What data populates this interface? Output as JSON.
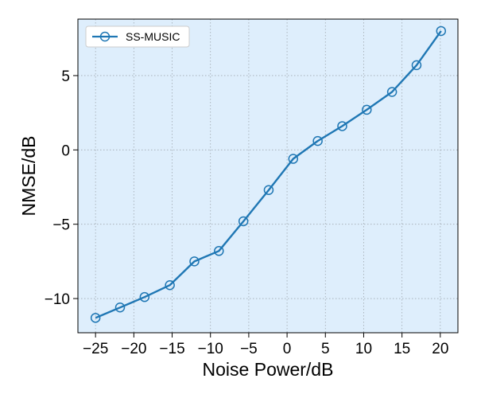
{
  "chart_data": {
    "type": "line",
    "xlabel": "Noise Power/dB",
    "ylabel": "NMSE/dB",
    "xlim": [
      -27.3,
      22.3
    ],
    "ylim": [
      -12.3,
      8.8
    ],
    "xticks": [
      -25,
      -20,
      -15,
      -10,
      -5,
      0,
      5,
      10,
      15,
      20
    ],
    "yticks": [
      -10,
      -5,
      0,
      5
    ],
    "xtick_labels": [
      "−25",
      "−20",
      "−15",
      "−10",
      "−5",
      "0",
      "5",
      "10",
      "15",
      "20"
    ],
    "ytick_labels": [
      "−10",
      "−5",
      "0",
      "5"
    ],
    "grid": true,
    "legend_position": "top-left",
    "colors": {
      "line": "#1f77b4",
      "plot_background": "#deeefc",
      "grid": "#a0a8b0"
    },
    "series": [
      {
        "name": "SS-MUSIC",
        "marker": "circle-open",
        "x": [
          -25,
          -21.8,
          -18.6,
          -15.3,
          -12.1,
          -8.9,
          -5.7,
          -2.4,
          0.8,
          4.0,
          7.2,
          10.4,
          13.7,
          16.9,
          20.1
        ],
        "y": [
          -11.3,
          -10.6,
          -9.9,
          -9.1,
          -7.5,
          -6.8,
          -4.8,
          -2.7,
          -0.6,
          0.6,
          1.6,
          2.7,
          3.9,
          5.7,
          8.0
        ]
      }
    ]
  }
}
